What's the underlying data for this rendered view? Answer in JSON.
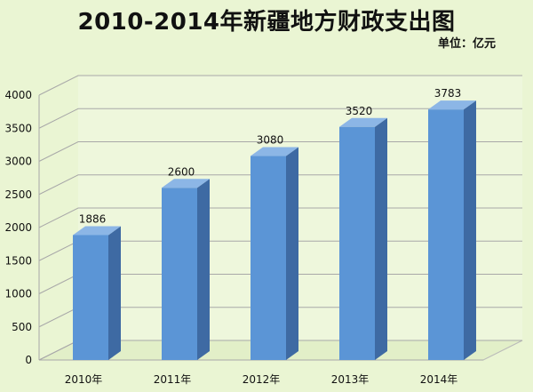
{
  "chart_data": {
    "type": "bar",
    "title": "2010-2014年新疆地方财政支出图",
    "unit_label": "单位：亿元",
    "categories": [
      "2010年",
      "2011年",
      "2012年",
      "2013年",
      "2014年"
    ],
    "values": [
      1886,
      2600,
      3080,
      3520,
      3783
    ],
    "data_labels": [
      "1886",
      "2600",
      "3080",
      "3520",
      "3783"
    ],
    "yticks": [
      "0",
      "500",
      "1000",
      "1500",
      "2000",
      "2500",
      "3000",
      "3500",
      "4000"
    ],
    "ylim": [
      0,
      4000
    ],
    "grid": true,
    "bar_colors": {
      "front": "#5b95d6",
      "side": "#3e6aa3",
      "top": "#8cb6e6"
    },
    "background": "#eaf5d3"
  }
}
